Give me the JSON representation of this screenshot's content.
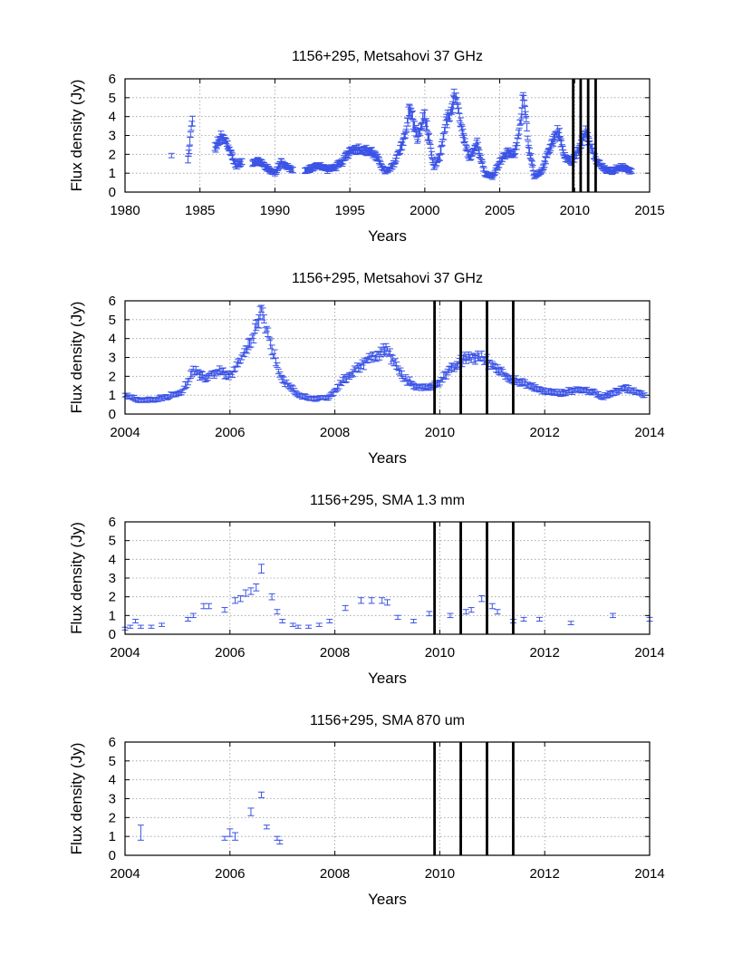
{
  "chart_data": [
    {
      "type": "scatter",
      "title": "1156+295, Metsahovi 37 GHz",
      "xlabel": "Years",
      "ylabel": "Flux density (Jy)",
      "xlim": [
        1980,
        2015
      ],
      "ylim": [
        0,
        6
      ],
      "xticks": [
        "1980",
        "1985",
        "1990",
        "1995",
        "2000",
        "2005",
        "2010",
        "2015"
      ],
      "yticks": [
        "0",
        "1",
        "2",
        "3",
        "4",
        "5",
        "6"
      ],
      "grid": true,
      "vertical_lines": [
        2009.9,
        2010.4,
        2010.9,
        2011.4
      ],
      "color": "#3b53e6",
      "curve": [
        [
          1983.1,
          1.9
        ],
        [
          1984.2,
          1.7
        ],
        [
          1984.5,
          3.9
        ],
        [
          1986.0,
          2.3
        ],
        [
          1986.4,
          2.9
        ],
        [
          1986.8,
          2.6
        ],
        [
          1987.1,
          2.0
        ],
        [
          1987.4,
          1.4
        ],
        [
          1987.8,
          1.6
        ],
        [
          1988.5,
          1.6
        ],
        [
          1989.0,
          1.6
        ],
        [
          1989.6,
          1.2
        ],
        [
          1990.0,
          1.0
        ],
        [
          1990.4,
          1.6
        ],
        [
          1990.8,
          1.3
        ],
        [
          1991.2,
          1.2
        ],
        [
          1992.0,
          1.1
        ],
        [
          1992.5,
          1.3
        ],
        [
          1993.0,
          1.4
        ],
        [
          1993.5,
          1.2
        ],
        [
          1994.0,
          1.3
        ],
        [
          1994.5,
          1.6
        ],
        [
          1995.0,
          2.2
        ],
        [
          1995.5,
          2.3
        ],
        [
          1996.0,
          2.2
        ],
        [
          1996.5,
          2.1
        ],
        [
          1997.0,
          1.6
        ],
        [
          1997.3,
          1.1
        ],
        [
          1997.7,
          1.2
        ],
        [
          1998.0,
          1.6
        ],
        [
          1998.4,
          2.4
        ],
        [
          1998.7,
          3.0
        ],
        [
          1999.0,
          4.5
        ],
        [
          1999.5,
          2.8
        ],
        [
          2000.0,
          4.1
        ],
        [
          2000.2,
          3.1
        ],
        [
          2000.6,
          1.3
        ],
        [
          2001.0,
          1.9
        ],
        [
          2001.4,
          3.7
        ],
        [
          2001.8,
          4.2
        ],
        [
          2002.0,
          5.3
        ],
        [
          2002.5,
          3.1
        ],
        [
          2003.0,
          1.8
        ],
        [
          2003.5,
          2.6
        ],
        [
          2004.0,
          1.0
        ],
        [
          2004.5,
          0.8
        ],
        [
          2005.0,
          1.6
        ],
        [
          2005.5,
          2.1
        ],
        [
          2006.0,
          2.0
        ],
        [
          2006.3,
          3.2
        ],
        [
          2006.6,
          5.3
        ],
        [
          2006.9,
          2.6
        ],
        [
          2007.3,
          0.8
        ],
        [
          2007.8,
          1.1
        ],
        [
          2008.3,
          2.3
        ],
        [
          2008.9,
          3.3
        ],
        [
          2009.3,
          1.9
        ],
        [
          2009.8,
          1.6
        ],
        [
          2010.3,
          2.3
        ],
        [
          2010.7,
          3.3
        ],
        [
          2011.0,
          2.6
        ],
        [
          2011.4,
          1.7
        ],
        [
          2012.0,
          1.2
        ],
        [
          2012.5,
          1.1
        ],
        [
          2012.9,
          1.3
        ],
        [
          2013.3,
          1.3
        ],
        [
          2013.8,
          1.1
        ]
      ]
    },
    {
      "type": "scatter",
      "title": "1156+295, Metsahovi 37 GHz",
      "xlabel": "Years",
      "ylabel": "Flux density (Jy)",
      "xlim": [
        2004,
        2014
      ],
      "ylim": [
        0,
        6
      ],
      "xticks": [
        "2004",
        "2006",
        "2008",
        "2010",
        "2012",
        "2014"
      ],
      "yticks": [
        "0",
        "1",
        "2",
        "3",
        "4",
        "5",
        "6"
      ],
      "grid": true,
      "vertical_lines": [
        2009.9,
        2010.4,
        2010.9,
        2011.4
      ],
      "color": "#3b53e6",
      "curve": [
        [
          2004.0,
          1.0
        ],
        [
          2004.3,
          0.7
        ],
        [
          2004.6,
          0.8
        ],
        [
          2004.9,
          1.0
        ],
        [
          2005.1,
          1.2
        ],
        [
          2005.3,
          2.3
        ],
        [
          2005.5,
          1.9
        ],
        [
          2005.8,
          2.3
        ],
        [
          2006.0,
          2.0
        ],
        [
          2006.2,
          2.8
        ],
        [
          2006.4,
          3.8
        ],
        [
          2006.6,
          5.4
        ],
        [
          2006.7,
          4.3
        ],
        [
          2006.9,
          2.6
        ],
        [
          2007.0,
          1.8
        ],
        [
          2007.3,
          1.0
        ],
        [
          2007.6,
          0.8
        ],
        [
          2007.9,
          0.9
        ],
        [
          2008.1,
          1.6
        ],
        [
          2008.4,
          2.4
        ],
        [
          2008.7,
          3.0
        ],
        [
          2009.0,
          3.4
        ],
        [
          2009.3,
          1.9
        ],
        [
          2009.6,
          1.4
        ],
        [
          2009.9,
          1.5
        ],
        [
          2010.2,
          2.3
        ],
        [
          2010.5,
          3.0
        ],
        [
          2010.8,
          3.0
        ],
        [
          2011.0,
          2.6
        ],
        [
          2011.4,
          1.8
        ],
        [
          2011.8,
          1.4
        ],
        [
          2012.0,
          1.2
        ],
        [
          2012.3,
          1.1
        ],
        [
          2012.6,
          1.3
        ],
        [
          2012.9,
          1.2
        ],
        [
          2013.1,
          0.9
        ],
        [
          2013.5,
          1.4
        ],
        [
          2013.9,
          1.0
        ]
      ]
    },
    {
      "type": "scatter",
      "title": "1156+295, SMA 1.3 mm",
      "xlabel": "Years",
      "ylabel": "Flux density (Jy)",
      "xlim": [
        2004,
        2014
      ],
      "ylim": [
        0,
        6
      ],
      "xticks": [
        "2004",
        "2006",
        "2008",
        "2010",
        "2012",
        "2014"
      ],
      "yticks": [
        "0",
        "1",
        "2",
        "3",
        "4",
        "5",
        "6"
      ],
      "grid": true,
      "vertical_lines": [
        2009.9,
        2010.4,
        2010.9,
        2011.4
      ],
      "color": "#3b53e6",
      "points": [
        [
          2004.0,
          0.3
        ],
        [
          2004.1,
          0.4
        ],
        [
          2004.2,
          0.7
        ],
        [
          2004.3,
          0.4
        ],
        [
          2004.5,
          0.4
        ],
        [
          2004.7,
          0.5
        ],
        [
          2005.2,
          0.8
        ],
        [
          2005.3,
          1.0
        ],
        [
          2005.5,
          1.5
        ],
        [
          2005.6,
          1.5
        ],
        [
          2005.9,
          1.3
        ],
        [
          2006.1,
          1.8
        ],
        [
          2006.2,
          1.9
        ],
        [
          2006.3,
          2.2
        ],
        [
          2006.4,
          2.3
        ],
        [
          2006.5,
          2.5
        ],
        [
          2006.6,
          3.5
        ],
        [
          2006.8,
          2.0
        ],
        [
          2006.9,
          1.2
        ],
        [
          2007.0,
          0.7
        ],
        [
          2007.2,
          0.5
        ],
        [
          2007.3,
          0.4
        ],
        [
          2007.5,
          0.4
        ],
        [
          2007.7,
          0.5
        ],
        [
          2007.9,
          0.7
        ],
        [
          2008.2,
          1.4
        ],
        [
          2008.5,
          1.8
        ],
        [
          2008.7,
          1.8
        ],
        [
          2008.9,
          1.8
        ],
        [
          2009.0,
          1.7
        ],
        [
          2009.2,
          0.9
        ],
        [
          2009.5,
          0.7
        ],
        [
          2009.8,
          1.1
        ],
        [
          2010.2,
          1.0
        ],
        [
          2010.5,
          1.2
        ],
        [
          2010.6,
          1.3
        ],
        [
          2010.8,
          1.9
        ],
        [
          2011.0,
          1.5
        ],
        [
          2011.1,
          1.2
        ],
        [
          2011.4,
          0.7
        ],
        [
          2011.6,
          0.8
        ],
        [
          2011.9,
          0.8
        ],
        [
          2012.5,
          0.6
        ],
        [
          2013.3,
          1.0
        ],
        [
          2014.0,
          0.8
        ]
      ]
    },
    {
      "type": "scatter",
      "title": "1156+295, SMA 870 um",
      "xlabel": "Years",
      "ylabel": "Flux density (Jy)",
      "xlim": [
        2004,
        2014
      ],
      "ylim": [
        0,
        6
      ],
      "xticks": [
        "2004",
        "2006",
        "2008",
        "2010",
        "2012",
        "2014"
      ],
      "yticks": [
        "0",
        "1",
        "2",
        "3",
        "4",
        "5",
        "6"
      ],
      "grid": true,
      "vertical_lines": [
        2009.9,
        2010.4,
        2010.9,
        2011.4
      ],
      "color": "#3b53e6",
      "points": [
        [
          2004.3,
          1.2,
          0.4
        ],
        [
          2005.9,
          0.9,
          0.1
        ],
        [
          2006.0,
          1.2,
          0.2
        ],
        [
          2006.1,
          1.0,
          0.2
        ],
        [
          2006.4,
          2.3,
          0.2
        ],
        [
          2006.6,
          3.2,
          0.15
        ],
        [
          2006.7,
          1.5,
          0.1
        ],
        [
          2006.9,
          0.9,
          0.1
        ],
        [
          2006.95,
          0.7,
          0.1
        ]
      ]
    }
  ]
}
